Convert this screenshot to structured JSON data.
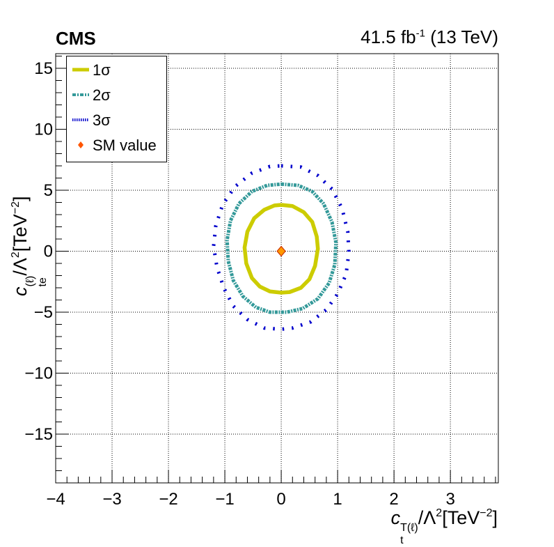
{
  "header": {
    "experiment": "CMS",
    "lumi": "41.5 fb",
    "lumi_exp": "-1",
    "energy": " (13 TeV)"
  },
  "axes": {
    "xlabel_main": "c",
    "xlabel_sub": "t",
    "xlabel_sup": "T(ℓ)",
    "xlabel_rest": "/Λ",
    "xlabel_pow": "2",
    "xlabel_unit": "[TeV",
    "xlabel_unit_pow": "−2",
    "xlabel_close": "]",
    "ylabel_main": "c",
    "ylabel_sub": "te",
    "ylabel_sup": "(ℓ)",
    "ylabel_rest": "/Λ",
    "ylabel_pow": "2",
    "ylabel_unit": "[TeV",
    "ylabel_unit_pow": "−2",
    "ylabel_close": "]"
  },
  "legend": {
    "entries": [
      {
        "label": "1σ",
        "color": "#cccc00",
        "style": "solid-thick"
      },
      {
        "label": "2σ",
        "color": "#339999",
        "style": "dashed-dots"
      },
      {
        "label": "3σ",
        "color": "#0000cc",
        "style": "fine-dots"
      },
      {
        "label": "SM value",
        "color": "#ff5500",
        "style": "diamond"
      }
    ]
  },
  "chart_data": {
    "type": "contour",
    "xlim": [
      -4,
      3.85
    ],
    "ylim": [
      -19,
      16.2
    ],
    "xticks": [
      -4,
      -3,
      -2,
      -1,
      0,
      1,
      2,
      3
    ],
    "xtick_labels": [
      "−4",
      "−3",
      "−2",
      "−1",
      "0",
      "1",
      "2",
      "3"
    ],
    "yticks": [
      -15,
      -10,
      -5,
      0,
      5,
      10,
      15
    ],
    "ytick_labels": [
      "−15",
      "−10",
      "−5",
      "0",
      "5",
      "10",
      "15"
    ],
    "grid": true,
    "contours": [
      {
        "name": "1σ",
        "color": "#cccc00",
        "points": [
          [
            0,
            3.8
          ],
          [
            0.2,
            3.7
          ],
          [
            0.4,
            3.2
          ],
          [
            0.55,
            2.4
          ],
          [
            0.63,
            1.2
          ],
          [
            0.65,
            0.2
          ],
          [
            0.6,
            -1.2
          ],
          [
            0.5,
            -2.3
          ],
          [
            0.35,
            -3.0
          ],
          [
            0.15,
            -3.35
          ],
          [
            0,
            -3.4
          ],
          [
            -0.2,
            -3.3
          ],
          [
            -0.38,
            -2.9
          ],
          [
            -0.52,
            -2.2
          ],
          [
            -0.62,
            -1.0
          ],
          [
            -0.65,
            0.3
          ],
          [
            -0.6,
            1.6
          ],
          [
            -0.48,
            2.7
          ],
          [
            -0.3,
            3.4
          ],
          [
            -0.12,
            3.75
          ],
          [
            0,
            3.8
          ]
        ]
      },
      {
        "name": "2σ",
        "color": "#339999",
        "points": [
          [
            0,
            5.5
          ],
          [
            0.3,
            5.4
          ],
          [
            0.55,
            4.9
          ],
          [
            0.75,
            3.9
          ],
          [
            0.9,
            2.4
          ],
          [
            0.97,
            0.7
          ],
          [
            0.95,
            -1.1
          ],
          [
            0.85,
            -2.6
          ],
          [
            0.65,
            -3.9
          ],
          [
            0.38,
            -4.7
          ],
          [
            0.1,
            -5.0
          ],
          [
            -0.2,
            -5.0
          ],
          [
            -0.45,
            -4.6
          ],
          [
            -0.68,
            -3.7
          ],
          [
            -0.85,
            -2.4
          ],
          [
            -0.94,
            -0.8
          ],
          [
            -0.96,
            0.9
          ],
          [
            -0.9,
            2.5
          ],
          [
            -0.75,
            3.9
          ],
          [
            -0.52,
            4.9
          ],
          [
            -0.25,
            5.4
          ],
          [
            0,
            5.5
          ]
        ]
      },
      {
        "name": "3σ",
        "color": "#0000cc",
        "points": [
          [
            0,
            7.0
          ],
          [
            0.35,
            6.9
          ],
          [
            0.65,
            6.2
          ],
          [
            0.9,
            5.1
          ],
          [
            1.08,
            3.5
          ],
          [
            1.18,
            1.6
          ],
          [
            1.2,
            -0.1
          ],
          [
            1.15,
            -1.9
          ],
          [
            1.0,
            -3.5
          ],
          [
            0.8,
            -4.8
          ],
          [
            0.52,
            -5.8
          ],
          [
            0.2,
            -6.3
          ],
          [
            0,
            -6.4
          ],
          [
            -0.3,
            -6.3
          ],
          [
            -0.6,
            -5.6
          ],
          [
            -0.85,
            -4.5
          ],
          [
            -1.02,
            -3.0
          ],
          [
            -1.14,
            -1.3
          ],
          [
            -1.2,
            0.4
          ],
          [
            -1.16,
            2.1
          ],
          [
            -1.04,
            3.8
          ],
          [
            -0.82,
            5.3
          ],
          [
            -0.52,
            6.4
          ],
          [
            -0.2,
            6.95
          ],
          [
            0,
            7.0
          ]
        ]
      }
    ],
    "sm_point": {
      "name": "SM value",
      "x": 0,
      "y": 0
    }
  }
}
